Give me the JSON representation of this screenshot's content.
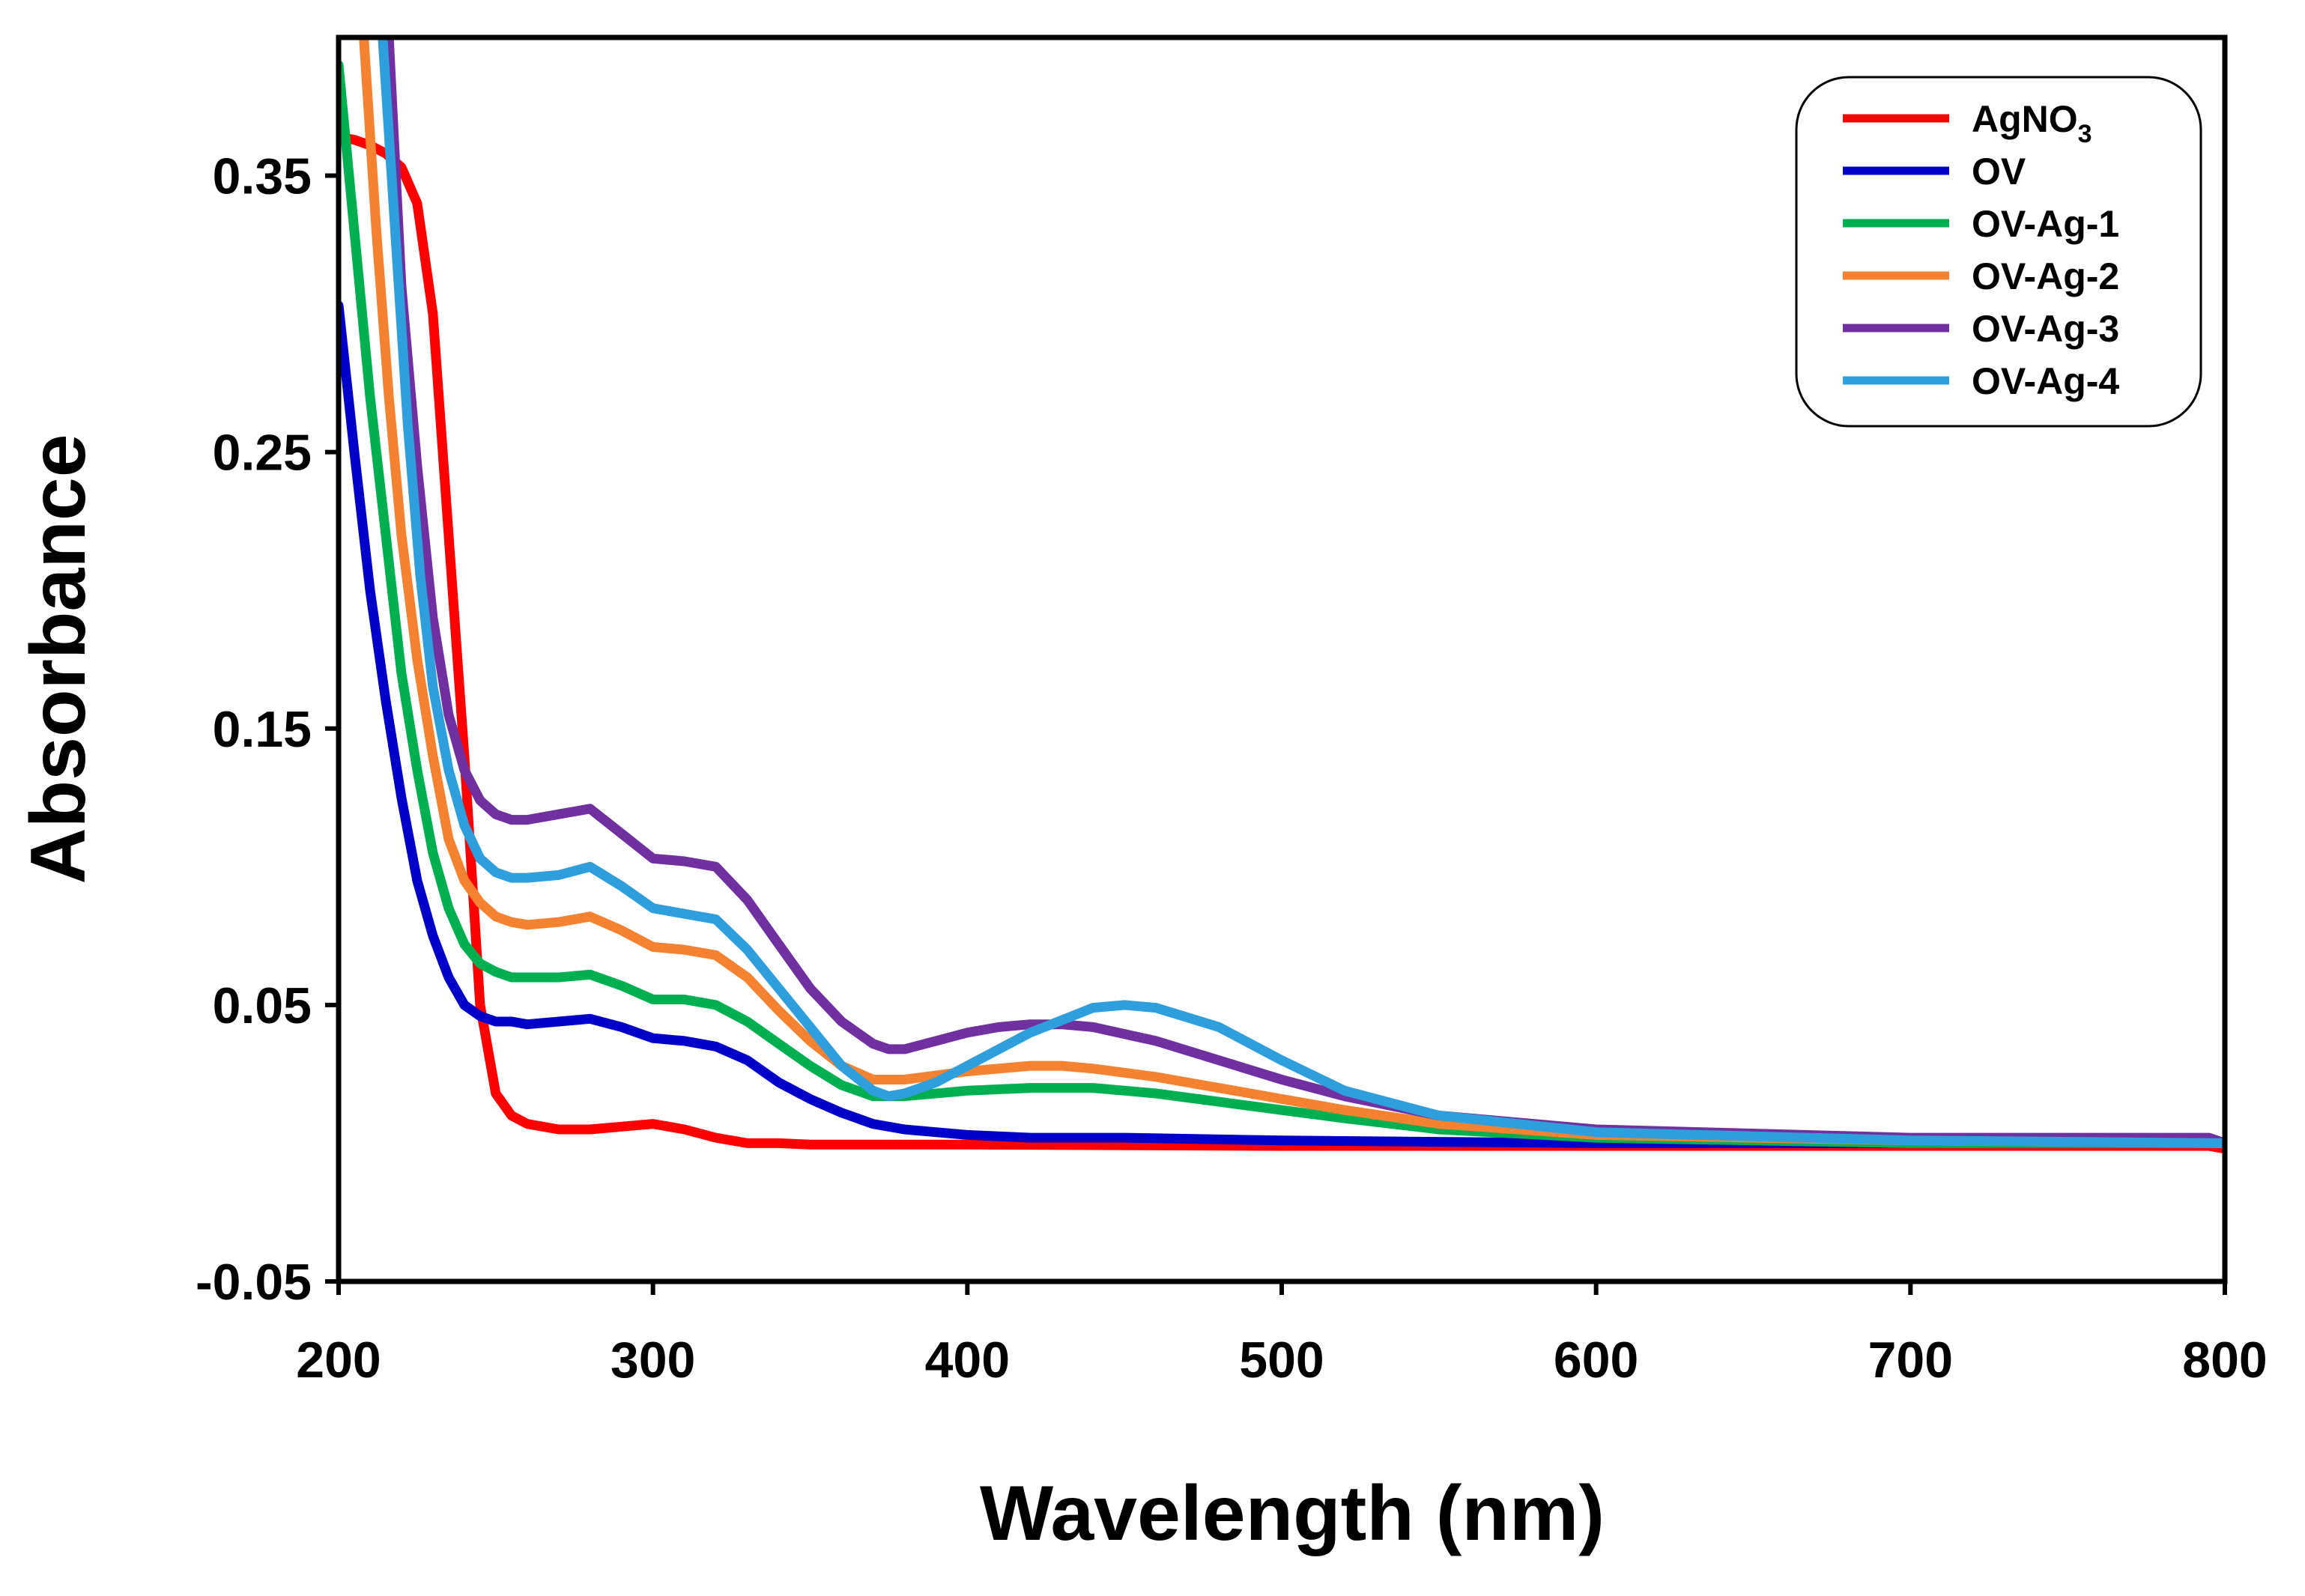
{
  "chart_data": {
    "type": "line",
    "title": "",
    "xlabel": "Wavelength (nm)",
    "ylabel": "Absorbance",
    "xlim": [
      200,
      800
    ],
    "ylim": [
      -0.05,
      0.4
    ],
    "xticks": [
      200,
      300,
      400,
      500,
      600,
      700,
      800
    ],
    "xtick_labels": [
      "200",
      "300",
      "400",
      "500",
      "600",
      "700",
      "800"
    ],
    "yticks": [
      -0.05,
      0.05,
      0.15,
      0.25,
      0.35
    ],
    "ytick_labels": [
      "-0.05",
      "0.05",
      "0.15",
      "0.25",
      "0.35"
    ],
    "grid": false,
    "legend_position": "top-right",
    "series": [
      {
        "name": "AgNO3",
        "label_main": "AgNO",
        "label_sub": "3",
        "color": "#ff0000",
        "x": [
          200,
          205,
          210,
          215,
          220,
          225,
          230,
          235,
          240,
          245,
          250,
          255,
          260,
          270,
          280,
          290,
          300,
          310,
          320,
          330,
          340,
          350,
          400,
          500,
          600,
          700,
          795,
          800
        ],
        "y": [
          0.364,
          0.363,
          0.361,
          0.358,
          0.353,
          0.34,
          0.3,
          0.22,
          0.14,
          0.05,
          0.018,
          0.01,
          0.007,
          0.005,
          0.005,
          0.006,
          0.007,
          0.005,
          0.002,
          0.0,
          0.0,
          -0.0005,
          -0.0005,
          -0.001,
          -0.001,
          -0.001,
          -0.001,
          -0.002
        ]
      },
      {
        "name": "OV",
        "label_main": "OV",
        "label_sub": "",
        "color": "#0000c8",
        "x": [
          200,
          205,
          210,
          215,
          220,
          225,
          230,
          235,
          240,
          245,
          250,
          255,
          260,
          270,
          280,
          290,
          300,
          310,
          320,
          330,
          340,
          350,
          360,
          370,
          380,
          390,
          400,
          420,
          450,
          500,
          600,
          700,
          800
        ],
        "y": [
          0.303,
          0.25,
          0.2,
          0.16,
          0.125,
          0.095,
          0.075,
          0.06,
          0.05,
          0.046,
          0.044,
          0.044,
          0.043,
          0.044,
          0.045,
          0.042,
          0.038,
          0.037,
          0.035,
          0.03,
          0.022,
          0.016,
          0.011,
          0.007,
          0.005,
          0.004,
          0.003,
          0.002,
          0.002,
          0.001,
          0.0,
          0.0,
          0.0
        ]
      },
      {
        "name": "OV-Ag-1",
        "label_main": "OV-Ag-1",
        "label_sub": "",
        "color": "#00b050",
        "x": [
          200,
          205,
          210,
          215,
          220,
          225,
          230,
          235,
          240,
          245,
          250,
          255,
          260,
          270,
          280,
          290,
          300,
          310,
          320,
          330,
          340,
          350,
          360,
          370,
          380,
          400,
          420,
          440,
          460,
          480,
          500,
          520,
          550,
          600,
          700,
          800
        ],
        "y": [
          0.39,
          0.33,
          0.27,
          0.22,
          0.17,
          0.135,
          0.105,
          0.085,
          0.072,
          0.065,
          0.062,
          0.06,
          0.06,
          0.06,
          0.061,
          0.057,
          0.052,
          0.052,
          0.05,
          0.044,
          0.036,
          0.028,
          0.021,
          0.017,
          0.017,
          0.019,
          0.02,
          0.02,
          0.018,
          0.015,
          0.012,
          0.009,
          0.005,
          0.002,
          0.0,
          0.0
        ]
      },
      {
        "name": "OV-Ag-2",
        "label_main": "OV-Ag-2",
        "label_sub": "",
        "color": "#f58231",
        "x": [
          208,
          212,
          216,
          220,
          225,
          230,
          235,
          240,
          245,
          250,
          255,
          260,
          270,
          280,
          290,
          300,
          310,
          320,
          330,
          340,
          350,
          360,
          370,
          380,
          400,
          420,
          430,
          440,
          460,
          480,
          500,
          520,
          550,
          600,
          700,
          800
        ],
        "y": [
          0.4,
          0.33,
          0.27,
          0.22,
          0.175,
          0.14,
          0.11,
          0.095,
          0.087,
          0.082,
          0.08,
          0.079,
          0.08,
          0.082,
          0.077,
          0.071,
          0.07,
          0.068,
          0.06,
          0.048,
          0.037,
          0.028,
          0.023,
          0.023,
          0.026,
          0.028,
          0.028,
          0.027,
          0.024,
          0.02,
          0.016,
          0.012,
          0.007,
          0.003,
          0.001,
          0.0
        ]
      },
      {
        "name": "OV-Ag-3",
        "label_main": "OV-Ag-3",
        "label_sub": "",
        "color": "#7030a0",
        "x": [
          216,
          220,
          225,
          230,
          235,
          240,
          245,
          250,
          255,
          260,
          270,
          280,
          290,
          300,
          310,
          320,
          330,
          340,
          350,
          360,
          370,
          375,
          380,
          390,
          400,
          410,
          420,
          430,
          440,
          460,
          480,
          500,
          520,
          550,
          600,
          700,
          795,
          800
        ],
        "y": [
          0.4,
          0.31,
          0.245,
          0.19,
          0.155,
          0.135,
          0.124,
          0.119,
          0.117,
          0.117,
          0.119,
          0.121,
          0.112,
          0.103,
          0.102,
          0.1,
          0.088,
          0.072,
          0.056,
          0.044,
          0.036,
          0.034,
          0.034,
          0.037,
          0.04,
          0.042,
          0.043,
          0.043,
          0.042,
          0.037,
          0.03,
          0.023,
          0.017,
          0.01,
          0.005,
          0.002,
          0.002,
          0.0
        ]
      },
      {
        "name": "OV-Ag-4",
        "label_main": "OV-Ag-4",
        "label_sub": "",
        "color": "#2e9fdc",
        "x": [
          214,
          218,
          222,
          226,
          230,
          235,
          240,
          245,
          250,
          255,
          260,
          270,
          280,
          290,
          300,
          310,
          320,
          330,
          340,
          350,
          360,
          370,
          375,
          380,
          390,
          400,
          420,
          440,
          450,
          460,
          480,
          500,
          520,
          550,
          600,
          700,
          800
        ],
        "y": [
          0.4,
          0.33,
          0.26,
          0.205,
          0.165,
          0.135,
          0.115,
          0.103,
          0.098,
          0.096,
          0.096,
          0.097,
          0.1,
          0.093,
          0.085,
          0.083,
          0.081,
          0.07,
          0.056,
          0.042,
          0.028,
          0.019,
          0.017,
          0.018,
          0.022,
          0.028,
          0.04,
          0.049,
          0.05,
          0.049,
          0.042,
          0.03,
          0.019,
          0.01,
          0.004,
          0.001,
          0.0
        ]
      }
    ]
  }
}
